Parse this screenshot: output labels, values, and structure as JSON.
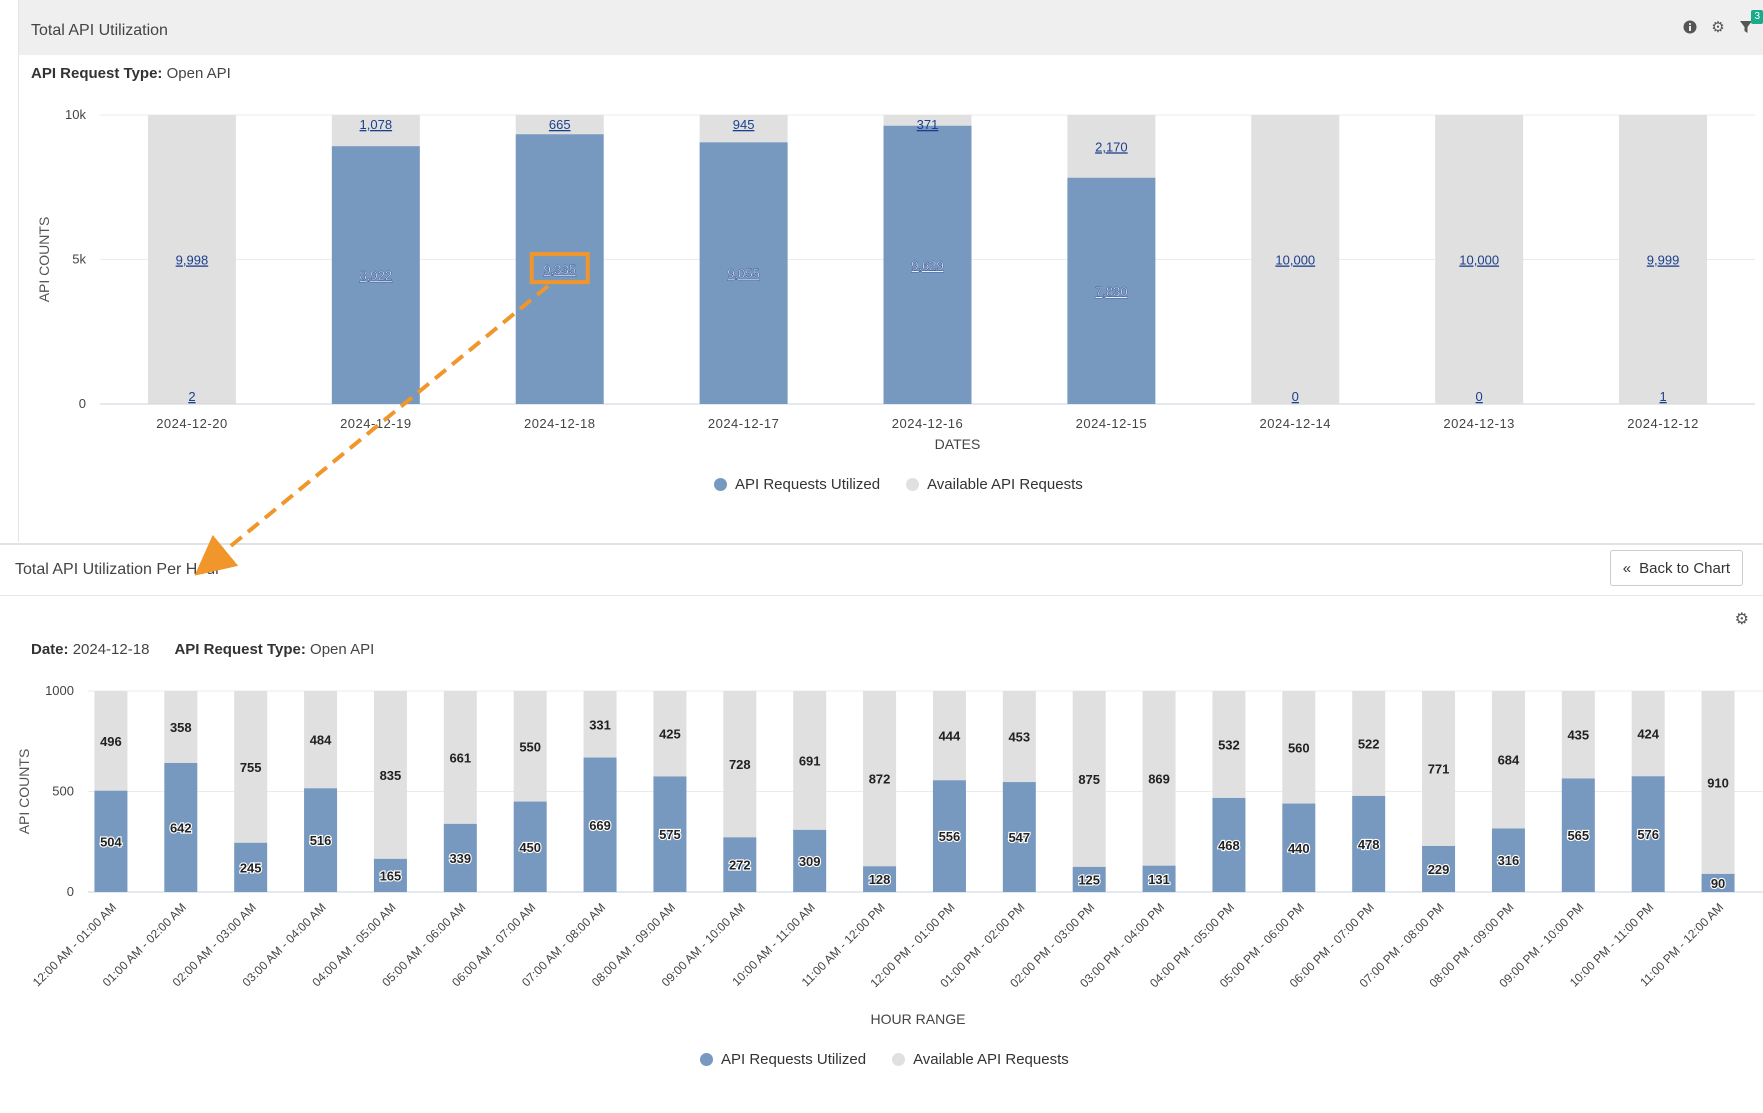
{
  "colors": {
    "utilized": "#7799c0",
    "available": "#e0e0e0",
    "highlight": "#f0962a",
    "link": "#1c3f8c"
  },
  "panel1": {
    "title": "Total API Utilization",
    "subtitle_label": "API Request Type:",
    "subtitle_value": "Open API",
    "icons": [
      "info-icon",
      "gear-icon",
      "filter-icon"
    ],
    "filter_badge": "3"
  },
  "panel2": {
    "title": "Total API Utilization Per Hour",
    "back_label": "Back to Chart",
    "date_label": "Date:",
    "date_value": "2024-12-18",
    "type_label": "API Request Type:",
    "type_value": "Open API"
  },
  "chart_data": [
    {
      "type": "bar",
      "stacked": true,
      "title": "Total API Utilization",
      "xlabel": "DATES",
      "ylabel": "API COUNTS",
      "ylim": [
        0,
        10000
      ],
      "yticks": [
        "0",
        "5k",
        "10k"
      ],
      "categories": [
        "2024-12-20",
        "2024-12-19",
        "2024-12-18",
        "2024-12-17",
        "2024-12-16",
        "2024-12-15",
        "2024-12-14",
        "2024-12-13",
        "2024-12-12"
      ],
      "series": [
        {
          "name": "API Requests Utilized",
          "values": [
            2,
            8922,
            9335,
            9055,
            9629,
            7830,
            0,
            0,
            1
          ],
          "labels": [
            "2",
            "8,922",
            "9,335",
            "9,055",
            "9,629",
            "7,830",
            "0",
            "0",
            "1"
          ]
        },
        {
          "name": "Available API Requests",
          "values": [
            9998,
            1078,
            665,
            945,
            371,
            2170,
            10000,
            10000,
            9999
          ],
          "labels": [
            "9,998",
            "1,078",
            "665",
            "945",
            "371",
            "2,170",
            "10,000",
            "10,000",
            "9,999"
          ]
        }
      ],
      "highlighted": "9,335"
    },
    {
      "type": "bar",
      "stacked": true,
      "title": "Total API Utilization Per Hour",
      "xlabel": "HOUR RANGE",
      "ylabel": "API COUNTS",
      "ylim": [
        0,
        1000
      ],
      "yticks": [
        "0",
        "500",
        "1000"
      ],
      "categories": [
        "12:00 AM - 01:00 AM",
        "01:00 AM - 02:00 AM",
        "02:00 AM - 03:00 AM",
        "03:00 AM - 04:00 AM",
        "04:00 AM - 05:00 AM",
        "05:00 AM - 06:00 AM",
        "06:00 AM - 07:00 AM",
        "07:00 AM - 08:00 AM",
        "08:00 AM - 09:00 AM",
        "09:00 AM - 10:00 AM",
        "10:00 AM - 11:00 AM",
        "11:00 AM - 12:00 PM",
        "12:00 PM - 01:00 PM",
        "01:00 PM - 02:00 PM",
        "02:00 PM - 03:00 PM",
        "03:00 PM - 04:00 PM",
        "04:00 PM - 05:00 PM",
        "05:00 PM - 06:00 PM",
        "06:00 PM - 07:00 PM",
        "07:00 PM - 08:00 PM",
        "08:00 PM - 09:00 PM",
        "09:00 PM - 10:00 PM",
        "10:00 PM - 11:00 PM",
        "11:00 PM - 12:00 AM"
      ],
      "series": [
        {
          "name": "API Requests Utilized",
          "values": [
            504,
            642,
            245,
            516,
            165,
            339,
            450,
            669,
            575,
            272,
            309,
            128,
            556,
            547,
            125,
            131,
            468,
            440,
            478,
            229,
            316,
            565,
            576,
            90
          ]
        },
        {
          "name": "Available API Requests",
          "values": [
            496,
            358,
            755,
            484,
            835,
            661,
            550,
            331,
            425,
            728,
            691,
            872,
            444,
            453,
            875,
            869,
            532,
            560,
            522,
            771,
            684,
            435,
            424,
            910
          ]
        }
      ]
    }
  ]
}
